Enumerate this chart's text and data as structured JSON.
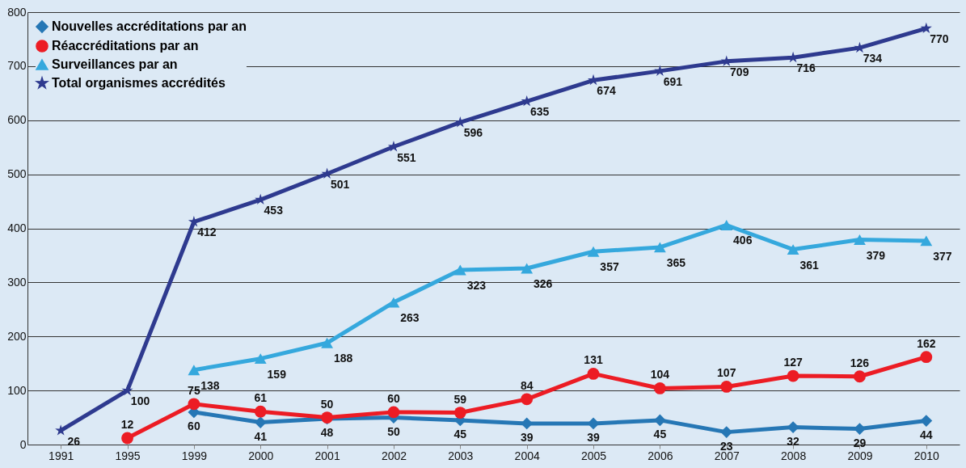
{
  "chart_data": {
    "type": "line",
    "categories": [
      "1991",
      "1995",
      "1999",
      "2000",
      "2001",
      "2002",
      "2003",
      "2004",
      "2005",
      "2006",
      "2007",
      "2008",
      "2009",
      "2010"
    ],
    "series": [
      {
        "name": "Nouvelles accréditations par an",
        "color": "#2677b5",
        "marker": "diamond",
        "values": [
          null,
          null,
          60,
          41,
          48,
          50,
          45,
          39,
          39,
          45,
          23,
          32,
          29,
          44
        ]
      },
      {
        "name": "Réaccréditations par an",
        "color": "#ec1c24",
        "marker": "circle",
        "values": [
          null,
          12,
          75,
          61,
          50,
          60,
          59,
          84,
          131,
          104,
          107,
          127,
          126,
          162
        ]
      },
      {
        "name": "Surveillances par an",
        "color": "#35a8dd",
        "marker": "triangle",
        "values": [
          null,
          null,
          138,
          159,
          188,
          263,
          323,
          326,
          357,
          365,
          406,
          361,
          379,
          377
        ]
      },
      {
        "name": "Total organismes accrédités",
        "color": "#2e3a8f",
        "marker": "star",
        "values": [
          26,
          100,
          412,
          453,
          501,
          551,
          596,
          635,
          674,
          691,
          709,
          716,
          734,
          770
        ]
      }
    ],
    "ylim": [
      0,
      800
    ],
    "yticks": [
      0,
      100,
      200,
      300,
      400,
      500,
      600,
      700,
      800
    ],
    "grid": "y",
    "legend": "top left",
    "data_labels": true,
    "line_style": "solid"
  }
}
